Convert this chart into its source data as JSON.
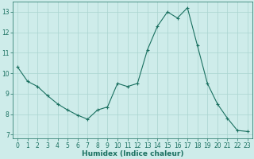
{
  "x": [
    0,
    1,
    2,
    3,
    4,
    5,
    6,
    7,
    8,
    9,
    10,
    11,
    12,
    13,
    14,
    15,
    16,
    17,
    18,
    19,
    20,
    21,
    22,
    23
  ],
  "y": [
    10.3,
    9.6,
    9.35,
    8.9,
    8.5,
    8.2,
    7.95,
    7.75,
    8.2,
    8.35,
    9.5,
    9.35,
    9.5,
    11.15,
    12.3,
    13.0,
    12.7,
    13.2,
    11.35,
    9.5,
    8.5,
    7.8,
    7.2,
    7.15
  ],
  "line_color": "#1a7060",
  "marker": "+",
  "marker_size": 3.5,
  "xlabel": "Humidex (Indice chaleur)",
  "ylim": [
    6.8,
    13.5
  ],
  "xlim": [
    -0.5,
    23.5
  ],
  "yticks": [
    7,
    8,
    9,
    10,
    11,
    12,
    13
  ],
  "xticks": [
    0,
    1,
    2,
    3,
    4,
    5,
    6,
    7,
    8,
    9,
    10,
    11,
    12,
    13,
    14,
    15,
    16,
    17,
    18,
    19,
    20,
    21,
    22,
    23
  ],
  "bg_color": "#ceecea",
  "grid_color": "#aad4d0",
  "tick_label_fontsize": 5.5,
  "xlabel_fontsize": 6.5,
  "linewidth": 0.8
}
